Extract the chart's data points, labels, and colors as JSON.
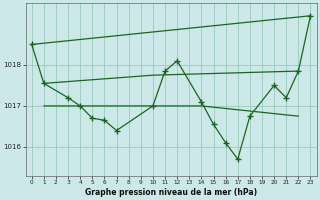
{
  "background_color": "#cce8e8",
  "grid_color": "#99ccbb",
  "line_color": "#1a6620",
  "xlabel": "Graphe pression niveau de la mer (hPa)",
  "ylim": [
    1015.3,
    1019.5
  ],
  "yticks": [
    1016,
    1017,
    1018
  ],
  "xlim": [
    -0.5,
    23.5
  ],
  "xticks": [
    0,
    1,
    2,
    3,
    4,
    5,
    6,
    7,
    8,
    9,
    10,
    11,
    12,
    13,
    14,
    15,
    16,
    17,
    18,
    19,
    20,
    21,
    22,
    23
  ],
  "line_diagonal_top": {
    "x": [
      0,
      23
    ],
    "y": [
      1018.5,
      1019.2
    ]
  },
  "line_flat_upper": {
    "x": [
      1,
      10,
      22
    ],
    "y": [
      1017.55,
      1017.75,
      1017.85
    ]
  },
  "line_flat_lower": {
    "x": [
      1,
      14,
      22
    ],
    "y": [
      1017.0,
      1017.0,
      1016.75
    ]
  },
  "line_main": {
    "x": [
      0,
      1,
      3,
      4,
      5,
      6,
      7,
      10,
      11,
      12,
      14,
      15,
      16,
      17,
      18,
      20,
      21,
      22,
      23
    ],
    "y": [
      1018.5,
      1017.55,
      1017.2,
      1017.0,
      1016.7,
      1016.65,
      1016.4,
      1017.0,
      1017.85,
      1018.1,
      1017.1,
      1016.55,
      1016.1,
      1015.7,
      1016.75,
      1017.5,
      1017.2,
      1017.85,
      1019.2
    ]
  }
}
